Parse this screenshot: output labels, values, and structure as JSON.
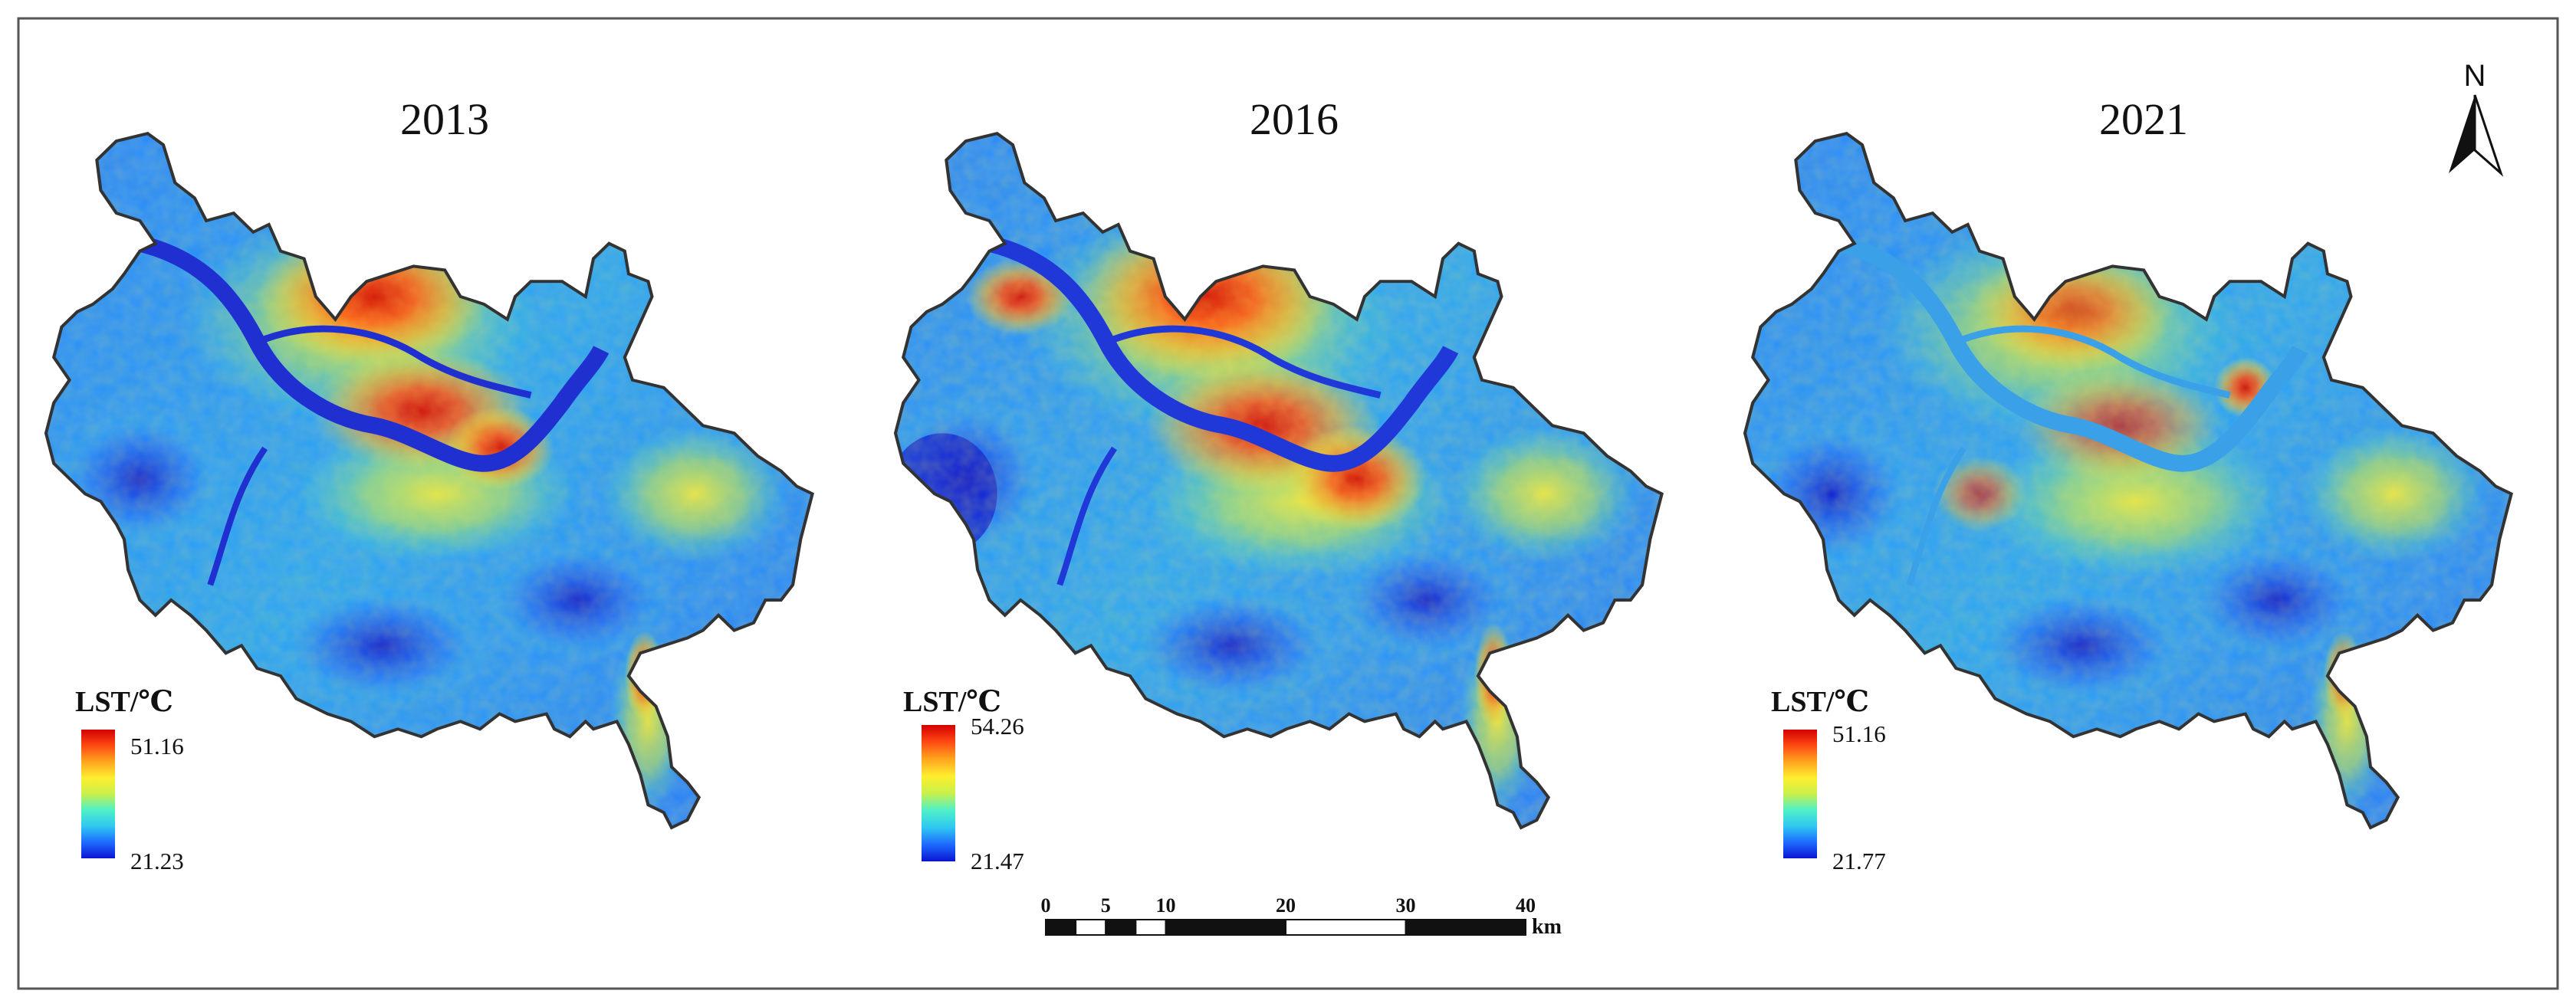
{
  "figure": {
    "panels": [
      {
        "id": "2013",
        "title": "2013",
        "legend": {
          "title": "LST/℃",
          "max_label": "51.16",
          "min_label": "21.23",
          "max": 51.16,
          "min": 21.23
        },
        "river_color": "#1f2fd0"
      },
      {
        "id": "2016",
        "title": "2016",
        "legend": {
          "title": "LST/℃",
          "max_label": "54.26",
          "min_label": "21.47",
          "max": 54.26,
          "min": 21.47
        },
        "river_color": "#2038d8"
      },
      {
        "id": "2021",
        "title": "2021",
        "legend": {
          "title": "LST/℃",
          "max_label": "51.16",
          "min_label": "21.77",
          "max": 51.16,
          "min": 21.77
        },
        "river_color": "#3aa0e8"
      }
    ],
    "colormap": [
      "#0a14d2",
      "#1e6cff",
      "#2fc8f0",
      "#4ff0c8",
      "#c8f04a",
      "#ffee2e",
      "#ffa51e",
      "#ff4a12",
      "#d40000"
    ],
    "north_arrow": {
      "label": "N"
    },
    "scale_bar": {
      "unit": "km",
      "ticks": [
        {
          "value": 0,
          "label": "0"
        },
        {
          "value": 5,
          "label": "5"
        },
        {
          "value": 10,
          "label": "10"
        },
        {
          "value": 20,
          "label": "20"
        },
        {
          "value": 30,
          "label": "30"
        },
        {
          "value": 40,
          "label": "40"
        }
      ]
    }
  }
}
